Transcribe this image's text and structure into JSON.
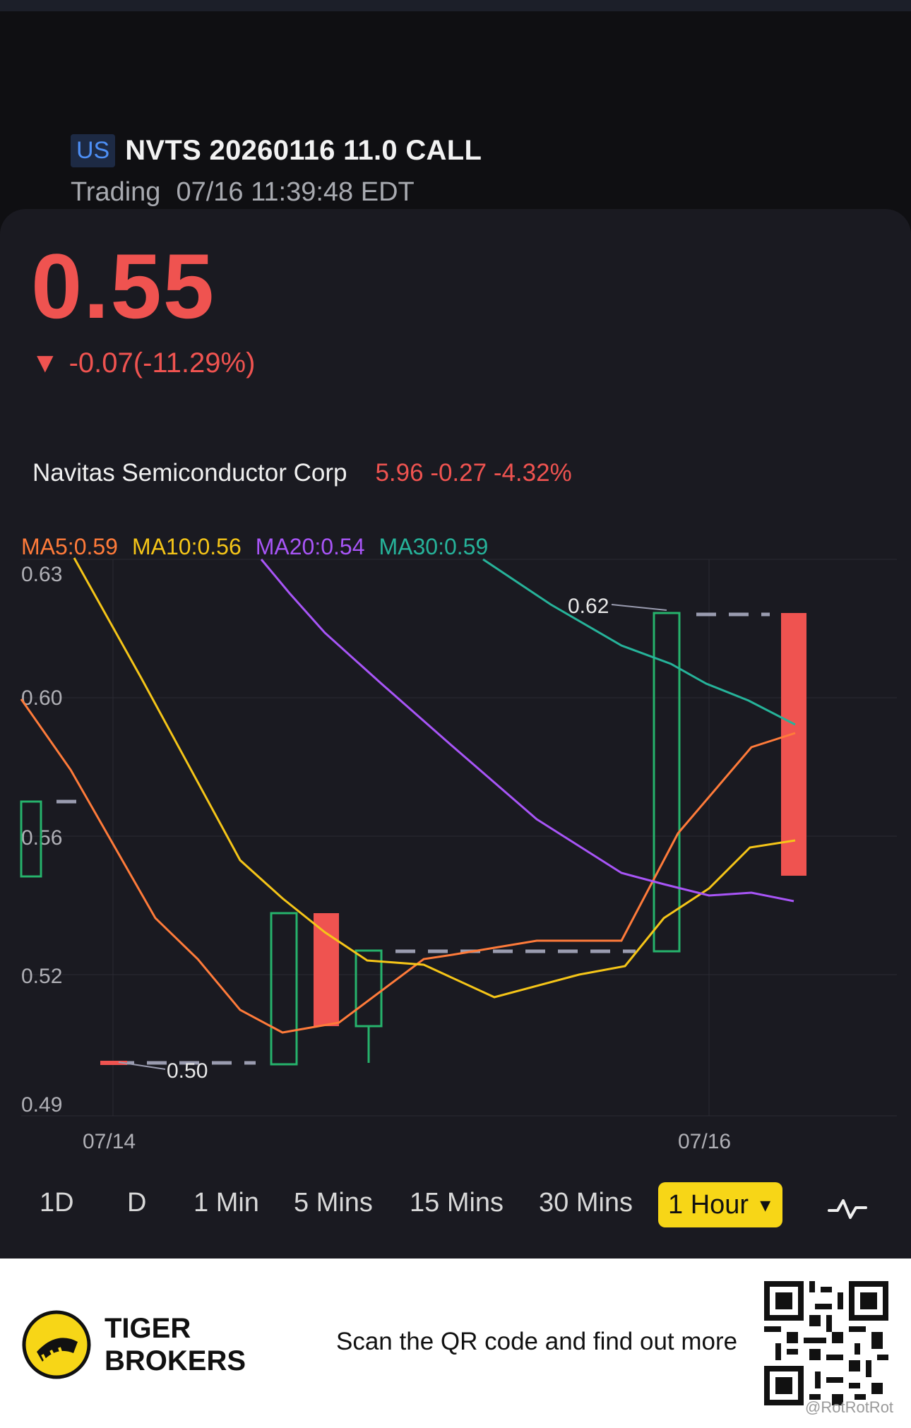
{
  "header": {
    "market": "US",
    "symbol": "NVTS 20260116 11.0 CALL",
    "status": "Trading",
    "timestamp": "07/16 11:39:48 EDT"
  },
  "quote": {
    "price": "0.55",
    "arrow": "▼",
    "change": "-0.07(-11.29%)",
    "color_down": "#ef5350"
  },
  "underlying": {
    "name": "Navitas Semiconductor Corp",
    "quote": "5.96 -0.27 -4.32%"
  },
  "moving_averages": {
    "ma5": "MA5:0.59",
    "ma10": "MA10:0.56",
    "ma20": "MA20:0.54",
    "ma30": "MA30:0.59"
  },
  "chart_data": {
    "type": "candlestick",
    "y_ticks": [
      "0.63",
      "0.60",
      "0.56",
      "0.52",
      "0.49"
    ],
    "x_ticks": [
      "07/14",
      "07/16"
    ],
    "annotations": {
      "high": "0.62",
      "low": "0.50"
    },
    "colors": {
      "up": "#26b36c",
      "down": "#ef5350",
      "ma5": "#ff7b3a",
      "ma10": "#f5c518",
      "ma20": "#a855f7",
      "ma30": "#26b39a"
    }
  },
  "timeframes": {
    "items": [
      "1D",
      "D",
      "1 Min",
      "5 Mins",
      "15 Mins",
      "30 Mins"
    ],
    "active": "1 Hour",
    "active_caret": "▾"
  },
  "footer": {
    "brand_line1": "TIGER",
    "brand_line2": "BROKERS",
    "cta": "Scan the QR code and find out more",
    "watermark": "@RotRotRot"
  }
}
